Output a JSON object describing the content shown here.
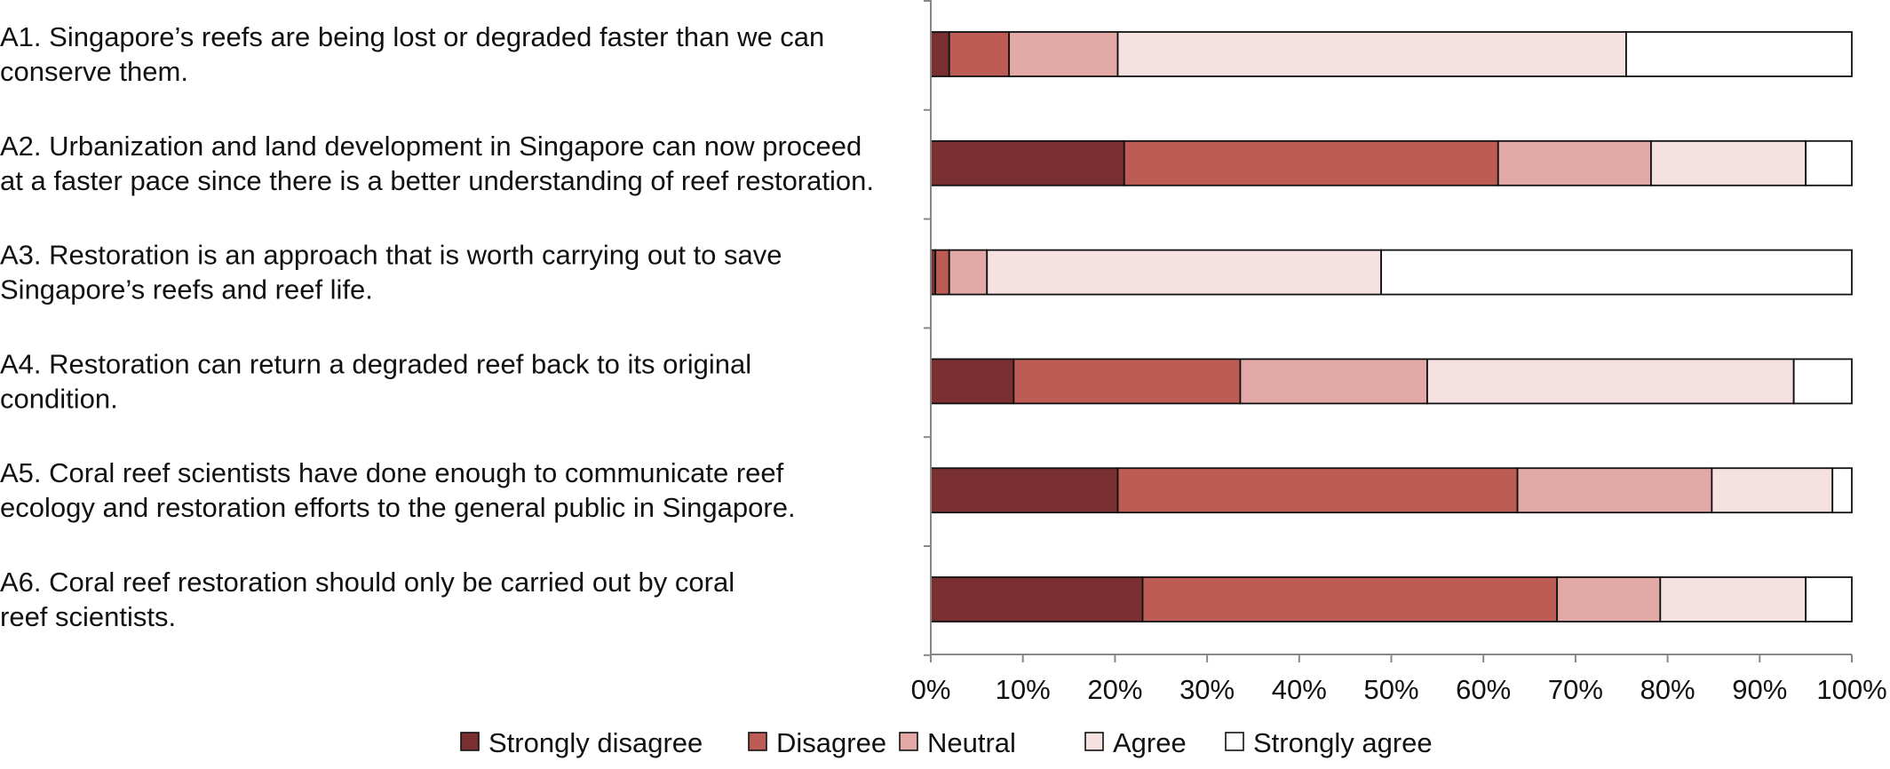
{
  "chart_data": {
    "type": "bar",
    "orientation": "horizontal",
    "stacked": true,
    "categories": [
      [
        "A1. Singapore’s reefs are being lost or degraded faster than we can",
        "conserve them."
      ],
      [
        "A2. Urbanization and land development in Singapore can now proceed",
        "at a faster pace since there is a better understanding of reef restoration."
      ],
      [
        "A3. Restoration is an approach that is worth carrying out to save",
        "Singapore’s reefs and reef life."
      ],
      [
        "A4. Restoration can return a degraded reef back to its original",
        "condition."
      ],
      [
        "A5. Coral reef scientists have done enough to communicate reef",
        "ecology and restoration efforts to the general public in Singapore."
      ],
      [
        "A6. Coral reef restoration should only be carried out by coral",
        "reef scientists."
      ]
    ],
    "series": [
      {
        "name": "Strongly disagree",
        "color": "#7a3030",
        "values": [
          2.0,
          21.0,
          0.5,
          9.0,
          20.3,
          23.0
        ]
      },
      {
        "name": "Disagree",
        "color": "#bd5c55",
        "values": [
          6.5,
          40.6,
          1.5,
          24.6,
          43.4,
          45.0
        ]
      },
      {
        "name": "Neutral",
        "color": "#e3a9a6",
        "values": [
          11.8,
          16.6,
          4.1,
          20.3,
          21.1,
          11.2
        ]
      },
      {
        "name": "Agree",
        "color": "#f5e1e0",
        "values": [
          55.2,
          16.8,
          42.8,
          39.8,
          13.1,
          15.8
        ]
      },
      {
        "name": "Strongly agree",
        "color": "#ffffff",
        "values": [
          24.5,
          5.0,
          51.1,
          6.3,
          2.1,
          5.0
        ]
      }
    ],
    "xlim": [
      0,
      100
    ],
    "xticks": [
      "0%",
      "10%",
      "20%",
      "30%",
      "40%",
      "50%",
      "60%",
      "70%",
      "80%",
      "90%",
      "100%"
    ],
    "legend": "bottom",
    "grid": false
  }
}
